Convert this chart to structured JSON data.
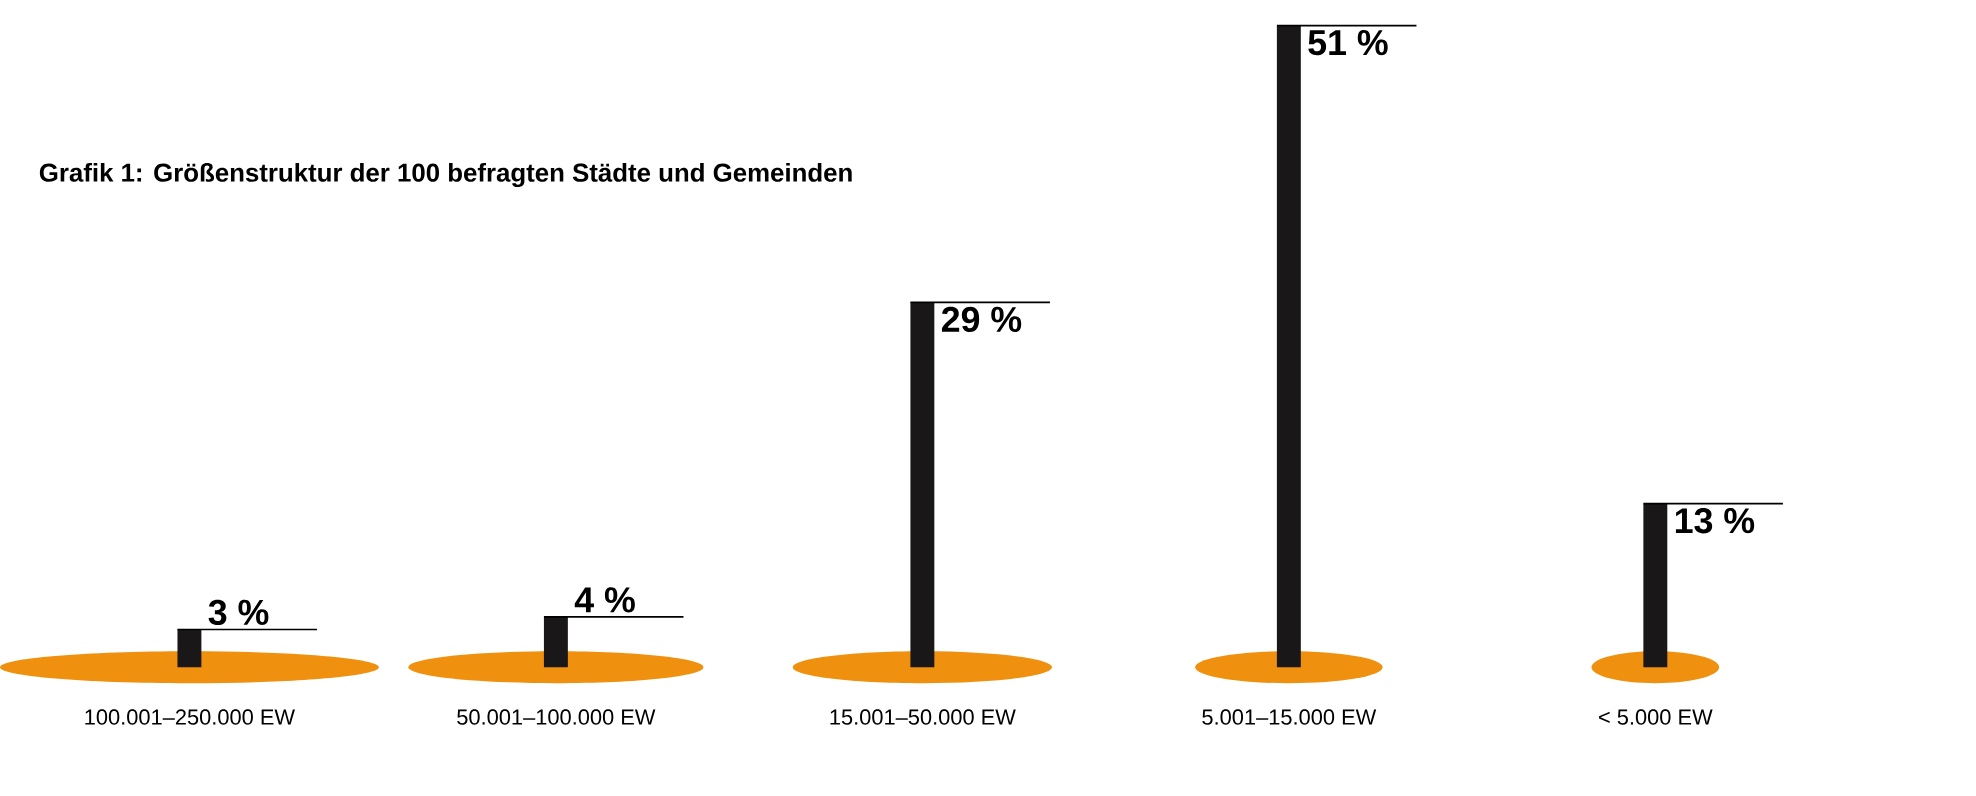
{
  "chart_data": {
    "type": "bar",
    "title": "Grafik 1: Größenstruktur der 100 befragten Städte und Gemeinden",
    "categories": [
      "100.001–250.000 EW",
      "50.001–100.000 EW",
      "15.001–50.000 EW",
      "5.001–15.000 EW",
      "< 5.000 EW"
    ],
    "values": [
      3,
      4,
      29,
      51,
      13
    ],
    "value_labels": [
      "3 %",
      "4 %",
      "29 %",
      "51 %",
      "13 %"
    ],
    "color": "#1a1718"
  }
}
